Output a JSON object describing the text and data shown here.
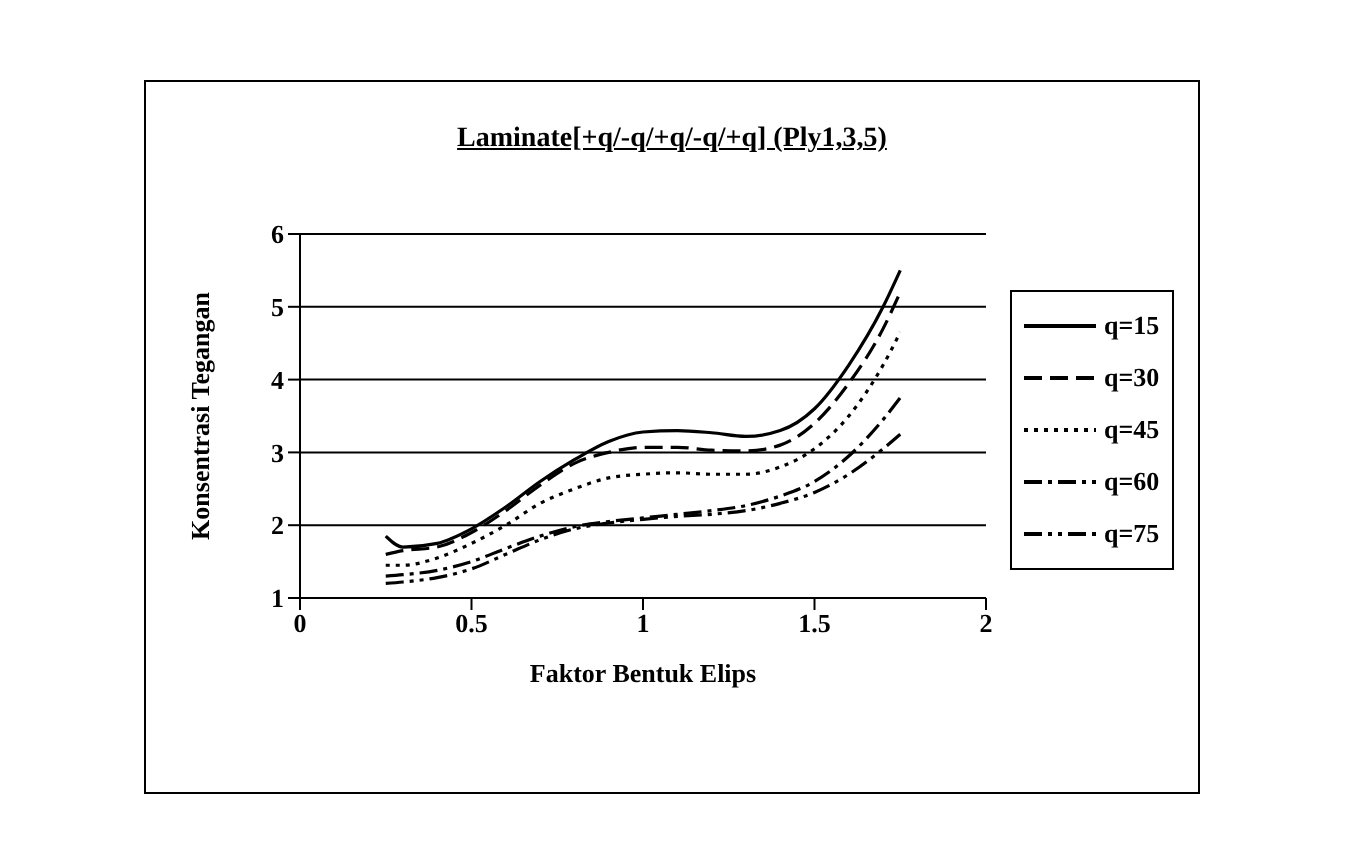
{
  "chart_data": {
    "type": "line",
    "title": "Laminate[+q/-q/+q/-q/+q] (Ply1,3,5)",
    "xlabel": "Faktor Bentuk Elips",
    "ylabel": "Konsentrasi Tegangan",
    "x": [
      0.25,
      0.3,
      0.4,
      0.5,
      0.6,
      0.7,
      0.8,
      0.9,
      1.0,
      1.1,
      1.2,
      1.3,
      1.4,
      1.5,
      1.6,
      1.7,
      1.75
    ],
    "series": [
      {
        "name": "q=15",
        "color": "#000000",
        "line_style": "solid",
        "values": [
          1.85,
          1.7,
          1.75,
          1.95,
          2.25,
          2.6,
          2.9,
          3.15,
          3.28,
          3.3,
          3.27,
          3.22,
          3.3,
          3.6,
          4.2,
          5.0,
          5.5
        ]
      },
      {
        "name": "q=30",
        "color": "#000000",
        "line_style": "dashed",
        "values": [
          1.6,
          1.65,
          1.7,
          1.9,
          2.2,
          2.55,
          2.85,
          3.0,
          3.07,
          3.07,
          3.03,
          3.02,
          3.1,
          3.4,
          3.95,
          4.7,
          5.2
        ]
      },
      {
        "name": "q=45",
        "color": "#000000",
        "line_style": "dotted",
        "values": [
          1.45,
          1.45,
          1.55,
          1.75,
          2.0,
          2.3,
          2.5,
          2.65,
          2.7,
          2.72,
          2.7,
          2.7,
          2.8,
          3.05,
          3.5,
          4.2,
          4.65
        ]
      },
      {
        "name": "q=60",
        "color": "#000000",
        "line_style": "dashdot",
        "values": [
          1.3,
          1.32,
          1.38,
          1.5,
          1.68,
          1.85,
          1.98,
          2.05,
          2.1,
          2.15,
          2.2,
          2.27,
          2.4,
          2.6,
          2.95,
          3.45,
          3.75
        ]
      },
      {
        "name": "q=75",
        "color": "#000000",
        "line_style": "dashdotdot",
        "values": [
          1.2,
          1.22,
          1.28,
          1.4,
          1.6,
          1.8,
          1.95,
          2.03,
          2.08,
          2.12,
          2.15,
          2.2,
          2.3,
          2.45,
          2.7,
          3.05,
          3.25
        ]
      }
    ],
    "xlim": [
      0,
      2
    ],
    "xticks": [
      0,
      0.5,
      1,
      1.5,
      2
    ],
    "ylim": [
      1,
      6
    ],
    "yticks": [
      1,
      2,
      3,
      4,
      5,
      6
    ],
    "grid": "y",
    "legend": "right",
    "marker": "none"
  }
}
